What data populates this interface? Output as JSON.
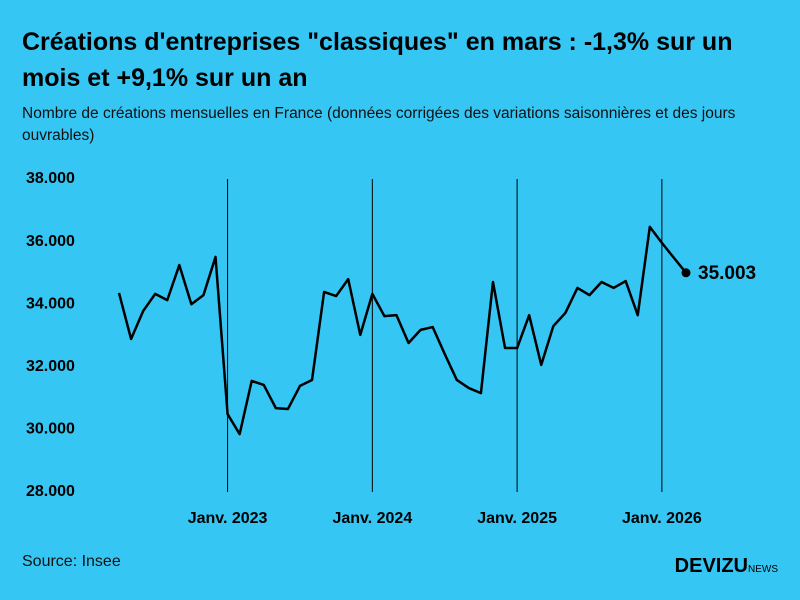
{
  "chart_data": {
    "type": "line",
    "title": "Créations d'entreprises \"classiques\" en mars : -1,3% sur un mois et +9,1% sur un an",
    "subtitle": "Nombre de créations mensuelles en France (données corrigées des variations saisonnières et des jours ouvrables)",
    "source": "Source: Insee",
    "brand": "DEVIZU",
    "brand_suffix": "NEWS",
    "x": [
      "2022-04",
      "2022-05",
      "2022-06",
      "2022-07",
      "2022-08",
      "2022-09",
      "2022-10",
      "2022-11",
      "2022-12",
      "2023-01",
      "2023-02",
      "2023-03",
      "2023-04",
      "2023-05",
      "2023-06",
      "2023-07",
      "2023-08",
      "2023-09",
      "2023-10",
      "2023-11",
      "2023-12",
      "2024-01",
      "2024-02",
      "2024-03",
      "2024-04",
      "2024-05",
      "2024-06",
      "2024-07",
      "2024-08",
      "2024-09",
      "2024-10",
      "2024-11",
      "2024-12",
      "2025-01",
      "2025-02",
      "2025-03",
      "2025-04",
      "2025-05",
      "2025-06",
      "2025-07",
      "2025-08",
      "2025-09",
      "2025-10",
      "2025-11",
      "2025-12",
      "2026-01",
      "2026-02",
      "2026-03"
    ],
    "series": [
      {
        "color": "#000000",
        "values": [
          34358,
          32890,
          33780,
          34330,
          34130,
          35250,
          34000,
          34290,
          35510,
          30490,
          29850,
          31550,
          31420,
          30680,
          30650,
          31390,
          31580,
          34390,
          34260,
          34800,
          33020,
          34330,
          33620,
          33650,
          32760,
          33180,
          33270,
          32410,
          31580,
          31320,
          31160,
          34710,
          32600,
          32600,
          33650,
          32060,
          33300,
          33720,
          34520,
          34290,
          34710,
          34520,
          34740,
          33650,
          36470,
          35960,
          35480,
          35003
        ],
        "value_labels": [
          null,
          null,
          null,
          null,
          null,
          null,
          null,
          null,
          null,
          null,
          null,
          null,
          null,
          null,
          null,
          null,
          null,
          null,
          null,
          null,
          null,
          null,
          null,
          null,
          null,
          null,
          null,
          null,
          null,
          null,
          null,
          null,
          null,
          null,
          null,
          null,
          null,
          null,
          null,
          null,
          null,
          null,
          null,
          null,
          null,
          null,
          null,
          "35.003"
        ]
      }
    ],
    "xlim": [
      "2022-04",
      "2026-03"
    ],
    "xticks": [
      {
        "value": "2023-01",
        "label": "Janv. 2023"
      },
      {
        "value": "2024-01",
        "label": "Janv. 2024"
      },
      {
        "value": "2025-01",
        "label": "Janv. 2025"
      },
      {
        "value": "2026-01",
        "label": "Janv. 2026"
      }
    ],
    "ylim": [
      28000,
      38000
    ],
    "yticks": [
      {
        "value": 28000,
        "label": "28.000"
      },
      {
        "value": 30000,
        "label": "30.000"
      },
      {
        "value": 32000,
        "label": "32.000"
      },
      {
        "value": 34000,
        "label": "34.000"
      },
      {
        "value": 36000,
        "label": "36.000"
      },
      {
        "value": 38000,
        "label": "38.000"
      }
    ],
    "grid": true
  }
}
